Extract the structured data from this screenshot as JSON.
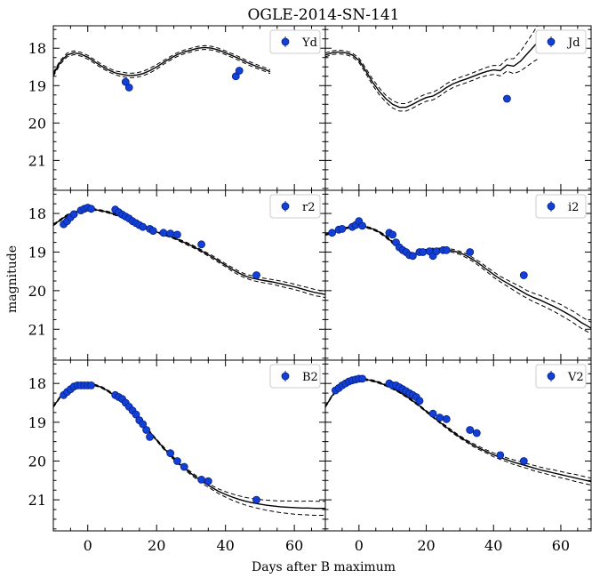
{
  "figure": {
    "title": "OGLE-2014-SN-141",
    "xlabel": "Days after B maximum",
    "ylabel": "magnitude"
  },
  "axes": {
    "xlim": [
      -10,
      69
    ],
    "ylim": [
      21.8,
      17.4
    ],
    "xticks": [
      0,
      20,
      40,
      60
    ],
    "xtick_labels": [
      "0",
      "20",
      "40",
      "60"
    ],
    "yticks": [
      18,
      19,
      20,
      21
    ],
    "ytick_labels": [
      "18",
      "19",
      "20",
      "21"
    ],
    "inverted_y": true,
    "ticks_direction": "in",
    "legend_position": "top-right"
  },
  "colors": {
    "marker_fill": "#1040d8",
    "marker_edge": "#0a1f80",
    "model_line": "#000000"
  },
  "chart_data": [
    {
      "type": "scatter",
      "band": "Yd",
      "legend": "Yd",
      "observations": [
        [
          11,
          18.9
        ],
        [
          12,
          19.05
        ],
        [
          43,
          18.75
        ],
        [
          44,
          18.6
        ]
      ],
      "model": {
        "x": [
          -10,
          -8,
          -6,
          -4,
          -2,
          0,
          2,
          4,
          6,
          8,
          10,
          12,
          14,
          16,
          18,
          20,
          22,
          24,
          26,
          28,
          30,
          32,
          34,
          36,
          38,
          40,
          42,
          44,
          46,
          48,
          50,
          52,
          53
        ],
        "mid": [
          18.7,
          18.38,
          18.18,
          18.12,
          18.16,
          18.24,
          18.36,
          18.48,
          18.58,
          18.66,
          18.7,
          18.73,
          18.72,
          18.68,
          18.6,
          18.5,
          18.38,
          18.27,
          18.17,
          18.1,
          18.05,
          18.0,
          17.98,
          18.0,
          18.05,
          18.12,
          18.2,
          18.28,
          18.37,
          18.45,
          18.52,
          18.59,
          18.63
        ],
        "spread": [
          0.05,
          0.05,
          0.05,
          0.05,
          0.05,
          0.05,
          0.05,
          0.05,
          0.05,
          0.05,
          0.06,
          0.06,
          0.06,
          0.06,
          0.06,
          0.06,
          0.05,
          0.05,
          0.05,
          0.05,
          0.05,
          0.05,
          0.05,
          0.05,
          0.05,
          0.05,
          0.05,
          0.05,
          0.05,
          0.05,
          0.05,
          0.05,
          0.05
        ]
      }
    },
    {
      "type": "scatter",
      "band": "Jd",
      "legend": "Jd",
      "observations": [
        [
          44,
          19.35
        ]
      ],
      "model": {
        "x": [
          -10,
          -8,
          -6,
          -4,
          -2,
          0,
          2,
          4,
          6,
          8,
          10,
          12,
          14,
          16,
          18,
          20,
          22,
          24,
          26,
          28,
          30,
          32,
          34,
          36,
          38,
          40,
          42,
          44,
          46,
          48,
          50,
          52,
          53
        ],
        "mid": [
          18.18,
          18.12,
          18.1,
          18.12,
          18.18,
          18.32,
          18.6,
          18.9,
          19.15,
          19.35,
          19.5,
          19.58,
          19.58,
          19.5,
          19.4,
          19.32,
          19.28,
          19.18,
          19.05,
          18.95,
          18.88,
          18.82,
          18.75,
          18.68,
          18.62,
          18.58,
          18.6,
          18.45,
          18.48,
          18.35,
          18.15,
          17.95,
          17.85
        ],
        "spread": [
          0.05,
          0.05,
          0.05,
          0.05,
          0.05,
          0.06,
          0.07,
          0.08,
          0.09,
          0.09,
          0.1,
          0.1,
          0.1,
          0.1,
          0.1,
          0.1,
          0.1,
          0.1,
          0.1,
          0.1,
          0.1,
          0.1,
          0.1,
          0.1,
          0.11,
          0.12,
          0.14,
          0.16,
          0.2,
          0.26,
          0.33,
          0.4,
          0.45
        ]
      }
    },
    {
      "type": "scatter",
      "band": "r2",
      "legend": "r2",
      "observations": [
        [
          -7,
          18.28
        ],
        [
          -6,
          18.2
        ],
        [
          -5,
          18.1
        ],
        [
          -4,
          18.02
        ],
        [
          -2,
          17.92
        ],
        [
          -1,
          17.88
        ],
        [
          0,
          17.85
        ],
        [
          1,
          17.88
        ],
        [
          8,
          17.9
        ],
        [
          9,
          17.97
        ],
        [
          10,
          18.03
        ],
        [
          11,
          18.08
        ],
        [
          12,
          18.13
        ],
        [
          13,
          18.2
        ],
        [
          14,
          18.25
        ],
        [
          15,
          18.3
        ],
        [
          16,
          18.35
        ],
        [
          18,
          18.4
        ],
        [
          19,
          18.45
        ],
        [
          22,
          18.5
        ],
        [
          24,
          18.52
        ],
        [
          26,
          18.55
        ],
        [
          33,
          18.8
        ],
        [
          49,
          19.6
        ]
      ],
      "model": {
        "x": [
          -10,
          -8,
          -6,
          -4,
          -2,
          0,
          2,
          4,
          6,
          8,
          10,
          12,
          14,
          16,
          18,
          20,
          22,
          24,
          26,
          28,
          30,
          32,
          34,
          36,
          38,
          40,
          42,
          44,
          46,
          48,
          50,
          52,
          54,
          56,
          58,
          60,
          62,
          64,
          66,
          68,
          69
        ],
        "mid": [
          18.3,
          18.17,
          18.05,
          17.97,
          17.92,
          17.9,
          17.9,
          17.93,
          17.97,
          18.03,
          18.1,
          18.17,
          18.25,
          18.33,
          18.41,
          18.48,
          18.54,
          18.6,
          18.67,
          18.75,
          18.83,
          18.92,
          19.02,
          19.12,
          19.23,
          19.34,
          19.45,
          19.55,
          19.63,
          19.68,
          19.72,
          19.75,
          19.78,
          19.82,
          19.86,
          19.9,
          19.95,
          20.0,
          20.05,
          20.08,
          20.1
        ],
        "spread": [
          0.02,
          0.02,
          0.02,
          0.02,
          0.02,
          0.02,
          0.02,
          0.02,
          0.02,
          0.02,
          0.02,
          0.02,
          0.02,
          0.02,
          0.02,
          0.02,
          0.02,
          0.02,
          0.02,
          0.03,
          0.03,
          0.03,
          0.03,
          0.04,
          0.04,
          0.04,
          0.05,
          0.05,
          0.05,
          0.06,
          0.06,
          0.06,
          0.06,
          0.07,
          0.07,
          0.07,
          0.07,
          0.08,
          0.08,
          0.08,
          0.08
        ]
      }
    },
    {
      "type": "scatter",
      "band": "i2",
      "legend": "i2",
      "observations": [
        [
          -8,
          18.5
        ],
        [
          -6,
          18.42
        ],
        [
          -5,
          18.4
        ],
        [
          -2,
          18.35
        ],
        [
          -1,
          18.3
        ],
        [
          0,
          18.2
        ],
        [
          1,
          18.32
        ],
        [
          9,
          18.5
        ],
        [
          10,
          18.55
        ],
        [
          11,
          18.75
        ],
        [
          12,
          18.88
        ],
        [
          13,
          18.95
        ],
        [
          14,
          19.0
        ],
        [
          15,
          19.08
        ],
        [
          16,
          19.1
        ],
        [
          18,
          19.0
        ],
        [
          19,
          19.0
        ],
        [
          21,
          18.98
        ],
        [
          22,
          19.1
        ],
        [
          23,
          18.98
        ],
        [
          25,
          18.95
        ],
        [
          26,
          18.95
        ],
        [
          33,
          19.0
        ],
        [
          49,
          19.6
        ]
      ],
      "model": {
        "x": [
          -10,
          -8,
          -6,
          -4,
          -2,
          0,
          2,
          4,
          6,
          8,
          10,
          12,
          14,
          16,
          18,
          20,
          22,
          24,
          26,
          28,
          30,
          32,
          34,
          36,
          38,
          40,
          42,
          44,
          46,
          48,
          50,
          52,
          54,
          56,
          58,
          60,
          62,
          64,
          66,
          68,
          69
        ],
        "mid": [
          18.55,
          18.5,
          18.43,
          18.38,
          18.35,
          18.33,
          18.35,
          18.4,
          18.48,
          18.6,
          18.75,
          18.9,
          19.02,
          19.05,
          19.02,
          18.96,
          18.93,
          18.93,
          18.94,
          18.97,
          19.02,
          19.1,
          19.2,
          19.32,
          19.45,
          19.58,
          19.7,
          19.8,
          19.9,
          20.0,
          20.1,
          20.18,
          20.25,
          20.33,
          20.41,
          20.5,
          20.6,
          20.7,
          20.82,
          20.92,
          20.97
        ],
        "spread": [
          0.02,
          0.02,
          0.02,
          0.02,
          0.02,
          0.02,
          0.02,
          0.02,
          0.02,
          0.03,
          0.03,
          0.03,
          0.03,
          0.03,
          0.03,
          0.03,
          0.03,
          0.03,
          0.03,
          0.04,
          0.04,
          0.05,
          0.05,
          0.06,
          0.06,
          0.07,
          0.07,
          0.08,
          0.09,
          0.1,
          0.1,
          0.11,
          0.12,
          0.12,
          0.13,
          0.14,
          0.14,
          0.15,
          0.15,
          0.15,
          0.15
        ]
      }
    },
    {
      "type": "scatter",
      "band": "B2",
      "legend": "B2",
      "observations": [
        [
          -7,
          18.3
        ],
        [
          -6,
          18.22
        ],
        [
          -5,
          18.15
        ],
        [
          -4,
          18.08
        ],
        [
          -3,
          18.05
        ],
        [
          -2,
          18.05
        ],
        [
          -1,
          18.05
        ],
        [
          0,
          18.05
        ],
        [
          1,
          18.05
        ],
        [
          8,
          18.3
        ],
        [
          9,
          18.35
        ],
        [
          10,
          18.4
        ],
        [
          11,
          18.5
        ],
        [
          12,
          18.6
        ],
        [
          13,
          18.7
        ],
        [
          14,
          18.8
        ],
        [
          15,
          18.95
        ],
        [
          16,
          19.05
        ],
        [
          17,
          19.2
        ],
        [
          18,
          19.38
        ],
        [
          24,
          19.8
        ],
        [
          26,
          20.0
        ],
        [
          28,
          20.15
        ],
        [
          33,
          20.48
        ],
        [
          35,
          20.52
        ],
        [
          49,
          21.0
        ]
      ],
      "model": {
        "x": [
          -10,
          -8,
          -6,
          -4,
          -2,
          0,
          2,
          4,
          6,
          8,
          10,
          12,
          14,
          16,
          18,
          20,
          22,
          24,
          26,
          28,
          30,
          32,
          34,
          36,
          38,
          40,
          42,
          44,
          46,
          48,
          50,
          52,
          54,
          56,
          58,
          60,
          62,
          64,
          66,
          68,
          69
        ],
        "mid": [
          18.6,
          18.35,
          18.18,
          18.08,
          18.03,
          18.02,
          18.04,
          18.1,
          18.2,
          18.33,
          18.48,
          18.66,
          18.85,
          19.05,
          19.25,
          19.46,
          19.66,
          19.85,
          20.02,
          20.18,
          20.32,
          20.45,
          20.57,
          20.68,
          20.78,
          20.86,
          20.93,
          20.99,
          21.04,
          21.08,
          21.11,
          21.14,
          21.16,
          21.18,
          21.19,
          21.2,
          21.21,
          21.21,
          21.22,
          21.22,
          21.22
        ],
        "spread": [
          0.02,
          0.02,
          0.02,
          0.02,
          0.02,
          0.02,
          0.02,
          0.02,
          0.02,
          0.02,
          0.02,
          0.02,
          0.02,
          0.02,
          0.02,
          0.02,
          0.03,
          0.03,
          0.03,
          0.03,
          0.04,
          0.04,
          0.05,
          0.05,
          0.06,
          0.07,
          0.08,
          0.09,
          0.1,
          0.11,
          0.12,
          0.13,
          0.14,
          0.15,
          0.16,
          0.17,
          0.17,
          0.18,
          0.18,
          0.18,
          0.18
        ]
      }
    },
    {
      "type": "scatter",
      "band": "V2",
      "legend": "V2",
      "observations": [
        [
          -7,
          18.18
        ],
        [
          -6,
          18.12
        ],
        [
          -5,
          18.05
        ],
        [
          -4,
          18.0
        ],
        [
          -3,
          17.95
        ],
        [
          -2,
          17.92
        ],
        [
          -1,
          17.9
        ],
        [
          0,
          17.88
        ],
        [
          1,
          17.88
        ],
        [
          9,
          18.0
        ],
        [
          10,
          18.05
        ],
        [
          11,
          18.05
        ],
        [
          12,
          18.1
        ],
        [
          13,
          18.15
        ],
        [
          14,
          18.2
        ],
        [
          15,
          18.25
        ],
        [
          16,
          18.3
        ],
        [
          17,
          18.35
        ],
        [
          18,
          18.45
        ],
        [
          22,
          18.78
        ],
        [
          24,
          18.88
        ],
        [
          26,
          18.92
        ],
        [
          33,
          19.2
        ],
        [
          35,
          19.28
        ],
        [
          42,
          19.85
        ],
        [
          49,
          20.0
        ]
      ],
      "model": {
        "x": [
          -10,
          -8,
          -6,
          -4,
          -2,
          0,
          2,
          4,
          6,
          8,
          10,
          12,
          14,
          16,
          18,
          20,
          22,
          24,
          26,
          28,
          30,
          32,
          34,
          36,
          38,
          40,
          42,
          44,
          46,
          48,
          50,
          52,
          54,
          56,
          58,
          60,
          62,
          64,
          66,
          68,
          69
        ],
        "mid": [
          18.6,
          18.32,
          18.12,
          18.0,
          17.93,
          17.9,
          17.9,
          17.93,
          17.98,
          18.05,
          18.13,
          18.22,
          18.33,
          18.45,
          18.58,
          18.72,
          18.86,
          19.0,
          19.13,
          19.26,
          19.38,
          19.49,
          19.59,
          19.68,
          19.76,
          19.84,
          19.91,
          19.97,
          20.03,
          20.08,
          20.13,
          20.18,
          20.23,
          20.27,
          20.31,
          20.35,
          20.39,
          20.43,
          20.47,
          20.51,
          20.53
        ],
        "spread": [
          0.02,
          0.02,
          0.02,
          0.02,
          0.02,
          0.02,
          0.02,
          0.02,
          0.02,
          0.02,
          0.02,
          0.02,
          0.02,
          0.02,
          0.02,
          0.02,
          0.02,
          0.02,
          0.03,
          0.03,
          0.03,
          0.03,
          0.04,
          0.04,
          0.04,
          0.05,
          0.05,
          0.05,
          0.06,
          0.06,
          0.06,
          0.07,
          0.07,
          0.07,
          0.08,
          0.08,
          0.08,
          0.09,
          0.09,
          0.09,
          0.09
        ]
      }
    }
  ]
}
